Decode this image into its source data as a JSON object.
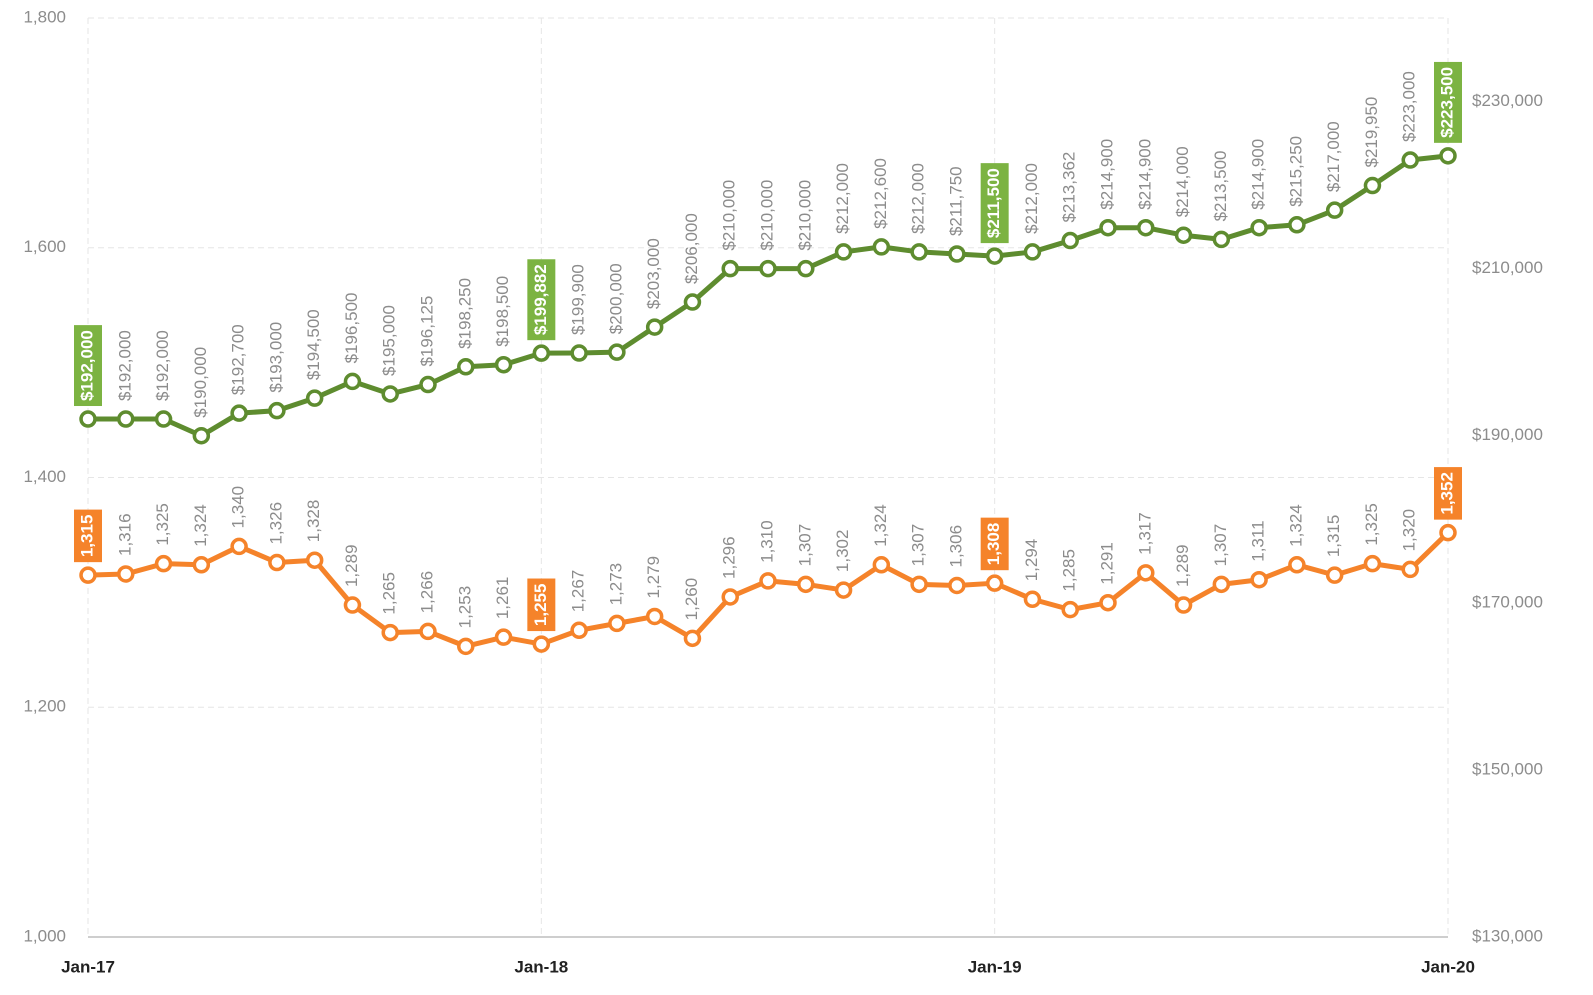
{
  "chart_data": {
    "type": "line",
    "categories": [
      "Jan-17",
      null,
      null,
      null,
      null,
      null,
      null,
      null,
      null,
      null,
      null,
      null,
      "Jan-18",
      null,
      null,
      null,
      null,
      null,
      null,
      null,
      null,
      null,
      null,
      null,
      "Jan-19",
      null,
      null,
      null,
      null,
      null,
      null,
      null,
      null,
      null,
      null,
      null,
      "Jan-20"
    ],
    "series": [
      {
        "color": "#5e8c2f",
        "label_color": "#7cb342",
        "axis": "y2",
        "values": [
          192000,
          192000,
          192000,
          190000,
          192700,
          193000,
          194500,
          196500,
          195000,
          196125,
          198250,
          198500,
          199882,
          199900,
          200000,
          203000,
          206000,
          210000,
          210000,
          210000,
          212000,
          212600,
          212000,
          211750,
          211500,
          212000,
          213362,
          214900,
          214900,
          214000,
          213500,
          214900,
          215250,
          217000,
          219950,
          223000,
          223500
        ],
        "value_labels": [
          "$192,000",
          "$192,000",
          "$192,000",
          "$190,000",
          "$192,700",
          "$193,000",
          "$194,500",
          "$196,500",
          "$195,000",
          "$196,125",
          "$198,250",
          "$198,500",
          "$199,882",
          "$199,900",
          "$200,000",
          "$203,000",
          "$206,000",
          "$210,000",
          "$210,000",
          "$210,000",
          "$212,000",
          "$212,600",
          "$212,000",
          "$211,750",
          "$211,500",
          "$212,000",
          "$213,362",
          "$214,900",
          "$214,900",
          "$214,000",
          "$213,500",
          "$214,900",
          "$215,250",
          "$217,000",
          "$219,950",
          "$223,000",
          "$223,500"
        ]
      },
      {
        "color": "#f5832a",
        "label_color": "#f5832a",
        "axis": "y",
        "values": [
          1315,
          1316,
          1325,
          1324,
          1340,
          1326,
          1328,
          1289,
          1265,
          1266,
          1253,
          1261,
          1255,
          1267,
          1273,
          1279,
          1260,
          1296,
          1310,
          1307,
          1302,
          1324,
          1307,
          1306,
          1308,
          1294,
          1285,
          1291,
          1317,
          1289,
          1307,
          1311,
          1324,
          1315,
          1325,
          1320,
          1352
        ],
        "value_labels": [
          "1,315",
          "1,316",
          "1,325",
          "1,324",
          "1,340",
          "1,326",
          "1,328",
          "1,289",
          "1,265",
          "1,266",
          "1,253",
          "1,261",
          "1,255",
          "1,267",
          "1,273",
          "1,279",
          "1,260",
          "1,296",
          "1,310",
          "1,307",
          "1,302",
          "1,324",
          "1,307",
          "1,306",
          "1,308",
          "1,294",
          "1,285",
          "1,291",
          "1,317",
          "1,289",
          "1,307",
          "1,311",
          "1,324",
          "1,315",
          "1,325",
          "1,320",
          "1,352"
        ]
      }
    ],
    "ylim": [
      1000,
      1800
    ],
    "yticks": [
      {
        "value": 1000,
        "label": "1,000"
      },
      {
        "value": 1200,
        "label": "1,200"
      },
      {
        "value": 1400,
        "label": "1,400"
      },
      {
        "value": 1600,
        "label": "1,600"
      },
      {
        "value": 1800,
        "label": "1,800"
      }
    ],
    "y2lim": [
      130000,
      240000
    ],
    "y2ticks": [
      {
        "value": 130000,
        "label": "$130,000"
      },
      {
        "value": 150000,
        "label": "$150,000"
      },
      {
        "value": 170000,
        "label": "$170,000"
      },
      {
        "value": 190000,
        "label": "$190,000"
      },
      {
        "value": 210000,
        "label": "$210,000"
      },
      {
        "value": 230000,
        "label": "$230,000"
      }
    ],
    "grid": true
  }
}
